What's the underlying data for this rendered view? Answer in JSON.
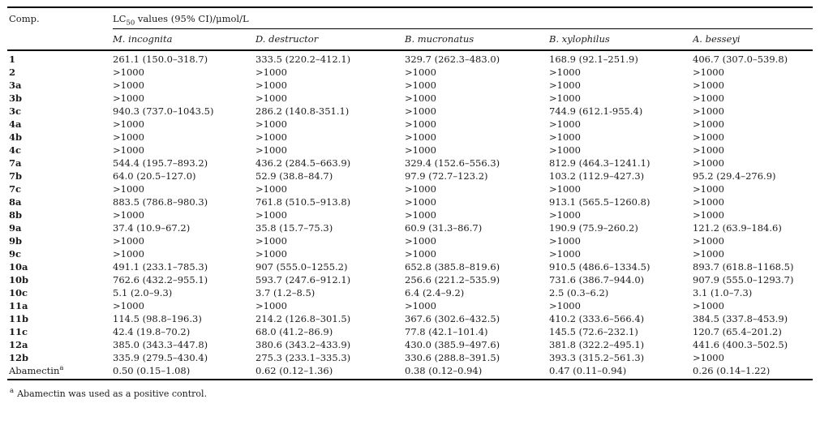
{
  "table": {
    "comp_header": "Comp.",
    "group_header": {
      "prefix": "LC",
      "sub": "50",
      "suffix": " values (95% CI)/μmol/L"
    },
    "columns": [
      "M. incognita",
      "D. destructor",
      "B. mucronatus",
      "B. xylophilus",
      "A. besseyi"
    ],
    "rows": [
      {
        "comp": "1",
        "values": [
          "261.1 (150.0–318.7)",
          "333.5 (220.2–412.1)",
          "329.7 (262.3–483.0)",
          "168.9 (92.1–251.9)",
          "406.7 (307.0–539.8)"
        ]
      },
      {
        "comp": "2",
        "values": [
          ">1000",
          ">1000",
          ">1000",
          ">1000",
          ">1000"
        ]
      },
      {
        "comp": "3a",
        "values": [
          ">1000",
          ">1000",
          ">1000",
          ">1000",
          ">1000"
        ]
      },
      {
        "comp": "3b",
        "values": [
          ">1000",
          ">1000",
          ">1000",
          ">1000",
          ">1000"
        ]
      },
      {
        "comp": "3c",
        "values": [
          "940.3 (737.0–1043.5)",
          "286.2 (140.8-351.1)",
          ">1000",
          "744.9 (612.1-955.4)",
          ">1000"
        ]
      },
      {
        "comp": "4a",
        "values": [
          ">1000",
          ">1000",
          ">1000",
          ">1000",
          ">1000"
        ]
      },
      {
        "comp": "4b",
        "values": [
          ">1000",
          ">1000",
          ">1000",
          ">1000",
          ">1000"
        ]
      },
      {
        "comp": "4c",
        "values": [
          ">1000",
          ">1000",
          ">1000",
          ">1000",
          ">1000"
        ]
      },
      {
        "comp": "7a",
        "values": [
          "544.4 (195.7–893.2)",
          "436.2 (284.5–663.9)",
          "329.4 (152.6–556.3)",
          "812.9 (464.3–1241.1)",
          ">1000"
        ]
      },
      {
        "comp": "7b",
        "values": [
          "64.0 (20.5–127.0)",
          "52.9 (38.8–84.7)",
          "97.9 (72.7–123.2)",
          "103.2 (112.9–427.3)",
          "95.2 (29.4–276.9)"
        ]
      },
      {
        "comp": "7c",
        "values": [
          ">1000",
          ">1000",
          ">1000",
          ">1000",
          ">1000"
        ]
      },
      {
        "comp": "8a",
        "values": [
          "883.5 (786.8–980.3)",
          "761.8 (510.5–913.8)",
          ">1000",
          "913.1 (565.5–1260.8)",
          ">1000"
        ]
      },
      {
        "comp": "8b",
        "values": [
          ">1000",
          ">1000",
          ">1000",
          ">1000",
          ">1000"
        ]
      },
      {
        "comp": "9a",
        "values": [
          "37.4 (10.9–67.2)",
          "35.8 (15.7–75.3)",
          "60.9 (31.3–86.7)",
          "190.9 (75.9–260.2)",
          "121.2 (63.9–184.6)"
        ]
      },
      {
        "comp": "9b",
        "values": [
          ">1000",
          ">1000",
          ">1000",
          ">1000",
          ">1000"
        ]
      },
      {
        "comp": "9c",
        "values": [
          ">1000",
          ">1000",
          ">1000",
          ">1000",
          ">1000"
        ]
      },
      {
        "comp": "10a",
        "values": [
          "491.1 (233.1–785.3)",
          "907 (555.0–1255.2)",
          "652.8 (385.8–819.6)",
          "910.5 (486.6–1334.5)",
          "893.7 (618.8–1168.5)"
        ]
      },
      {
        "comp": "10b",
        "values": [
          "762.6 (432.2–955.1)",
          "593.7 (247.6–912.1)",
          "256.6 (221.2–535.9)",
          "731.6 (386.7–944.0)",
          "907.9 (555.0–1293.7)"
        ]
      },
      {
        "comp": "10c",
        "values": [
          "5.1 (2.0–9.3)",
          "3.7 (1.2–8.5)",
          "6.4 (2.4–9.2)",
          "2.5 (0.3–6.2)",
          "3.1 (1.0–7.3)"
        ]
      },
      {
        "comp": "11a",
        "values": [
          ">1000",
          ">1000",
          ">1000",
          ">1000",
          ">1000"
        ]
      },
      {
        "comp": "11b",
        "values": [
          "114.5 (98.8–196.3)",
          "214.2 (126.8–301.5)",
          "367.6 (302.6–432.5)",
          "410.2 (333.6–566.4)",
          "384.5 (337.8–453.9)"
        ]
      },
      {
        "comp": "11c",
        "values": [
          "42.4 (19.8–70.2)",
          "68.0 (41.2–86.9)",
          "77.8 (42.1–101.4)",
          "145.5 (72.6–232.1)",
          "120.7 (65.4–201.2)"
        ]
      },
      {
        "comp": "12a",
        "values": [
          "385.0 (343.3–447.8)",
          "380.6 (343.2–433.9)",
          "430.0 (385.9–497.6)",
          "381.8 (322.2–495.1)",
          "441.6 (400.3–502.5)"
        ]
      },
      {
        "comp": "12b",
        "values": [
          "335.9 (279.5–430.4)",
          "275.3 (233.1–335.3)",
          "330.6 (288.8–391.5)",
          "393.3 (315.2–561.3)",
          ">1000"
        ]
      },
      {
        "comp": "Abamectin",
        "comp_sup": "a",
        "bold": false,
        "values": [
          "0.50 (0.15–1.08)",
          "0.62 (0.12–1.36)",
          "0.38 (0.12–0.94)",
          "0.47 (0.11–0.94)",
          "0.26 (0.14–1.22)"
        ]
      }
    ]
  },
  "footnote": {
    "marker": "a",
    "text": "Abamectin was used as a positive control."
  },
  "colors": {
    "text": "#1b1b1b",
    "rule": "#000000",
    "background": "#ffffff"
  }
}
